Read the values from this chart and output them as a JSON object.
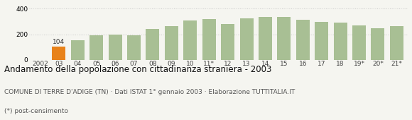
{
  "categories": [
    "2002",
    "03",
    "04",
    "05",
    "06",
    "07",
    "08",
    "09",
    "10",
    "11*",
    "12",
    "13",
    "14",
    "15",
    "16",
    "17",
    "18",
    "19*",
    "20*",
    "21*"
  ],
  "values": [
    0,
    104,
    155,
    195,
    200,
    193,
    240,
    265,
    308,
    318,
    280,
    325,
    338,
    335,
    315,
    300,
    292,
    268,
    248,
    262
  ],
  "bar_colors": [
    "#f5f5f0",
    "#e8821a",
    "#a8bf94",
    "#a8bf94",
    "#a8bf94",
    "#a8bf94",
    "#a8bf94",
    "#a8bf94",
    "#a8bf94",
    "#a8bf94",
    "#a8bf94",
    "#a8bf94",
    "#a8bf94",
    "#a8bf94",
    "#a8bf94",
    "#a8bf94",
    "#a8bf94",
    "#a8bf94",
    "#a8bf94",
    "#a8bf94"
  ],
  "highlighted_index": 1,
  "highlighted_value": 104,
  "ylim": [
    0,
    450
  ],
  "yticks": [
    0,
    200,
    400
  ],
  "title": "Andamento della popolazione con cittadinanza straniera - 2003",
  "subtitle": "COMUNE DI TERRE D'ADIGE (TN) · Dati ISTAT 1° gennaio 2003 · Elaborazione TUTTITALIA.IT",
  "footnote": "(*) post-censimento",
  "title_fontsize": 8.5,
  "subtitle_fontsize": 6.5,
  "footnote_fontsize": 6.5,
  "background_color": "#f5f5f0",
  "bar_edge_color": "none",
  "grid_color": "#c8c8c8",
  "tick_label_fontsize": 6.5
}
